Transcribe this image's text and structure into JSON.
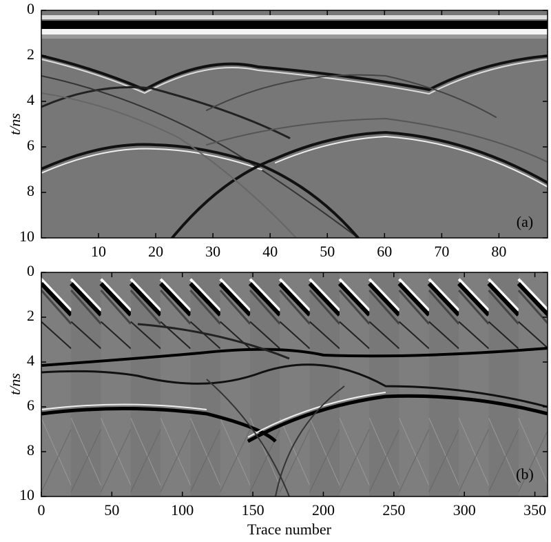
{
  "chart_data": [
    {
      "type": "image",
      "panel_label": "(a)",
      "ylabel": "t/ns",
      "y_reversed": true,
      "xlim": [
        0,
        88.5
      ],
      "xticks": [
        10,
        20,
        30,
        40,
        50,
        60,
        70,
        80
      ],
      "ylim": [
        0,
        10
      ],
      "yticks": [
        0,
        2,
        4,
        6,
        8,
        10
      ]
    },
    {
      "type": "image",
      "panel_label": "(b)",
      "ylabel": "t/ns",
      "xlabel": "Trace number",
      "y_reversed": true,
      "xlim": [
        0,
        359
      ],
      "xticks": [
        0,
        50,
        100,
        150,
        200,
        250,
        300,
        350
      ],
      "ylim": [
        0,
        10
      ],
      "yticks": [
        0,
        2,
        4,
        6,
        8,
        10
      ]
    }
  ]
}
